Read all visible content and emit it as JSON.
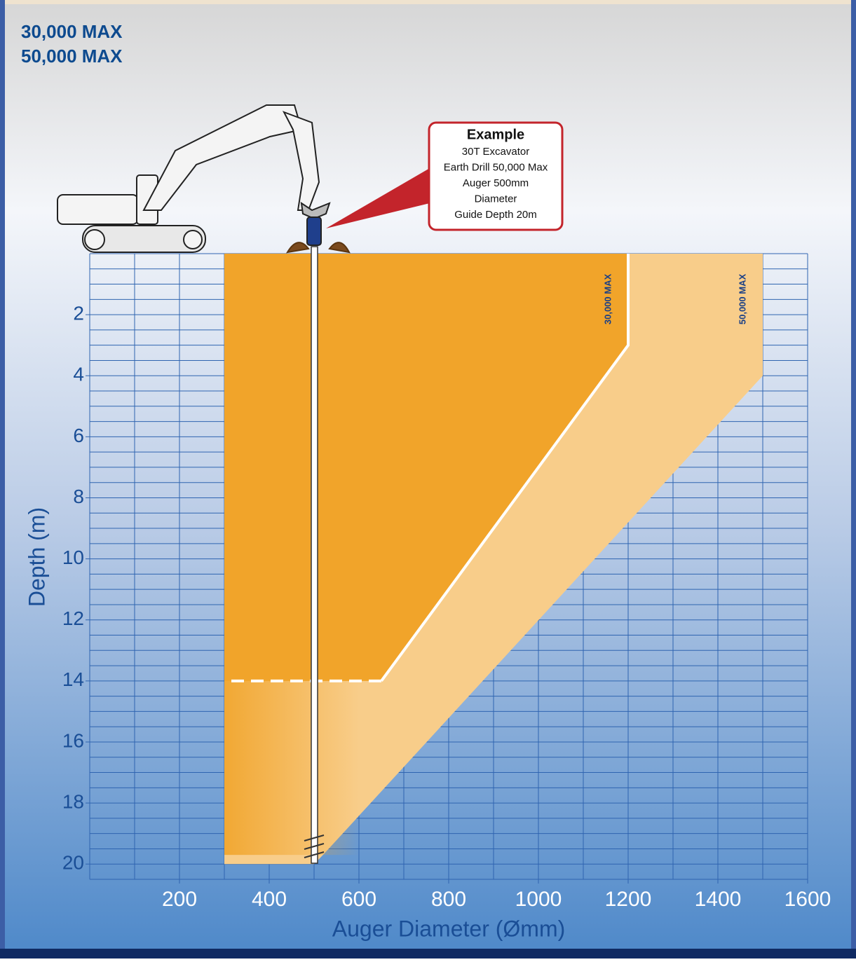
{
  "chart_data": {
    "type": "envelope",
    "headings": [
      "30,000 MAX",
      "50,000 MAX"
    ],
    "x_label": "Auger Diameter (Ømm)",
    "y_label": "Depth (m)",
    "xlim": [
      0,
      1600
    ],
    "ylim": [
      0,
      20.5
    ],
    "xticks": [
      200,
      400,
      600,
      800,
      1000,
      1200,
      1400,
      1600
    ],
    "yticks": [
      2,
      4,
      6,
      8,
      10,
      12,
      14,
      16,
      18,
      20
    ],
    "x_grid_step": 100,
    "y_grid_step": 0.5,
    "grid": true,
    "series": [
      {
        "name": "50,000 MAX",
        "color": "#f8cd8a",
        "x": [
          300,
          1500,
          1500,
          520,
          500,
          300
        ],
        "y": [
          0,
          0,
          4,
          19.7,
          20,
          20
        ]
      },
      {
        "name": "30,000 MAX",
        "color": "#f1a42a",
        "x": [
          300,
          1200,
          1200,
          650,
          300
        ],
        "y": [
          0,
          0,
          3,
          14,
          14
        ]
      }
    ],
    "annotation": {
      "title": "Example",
      "lines": [
        "30T Excavator",
        "Earth Drill 50,000 Max",
        "Auger 500mm",
        "Diameter",
        "Guide Depth 20m"
      ]
    }
  }
}
